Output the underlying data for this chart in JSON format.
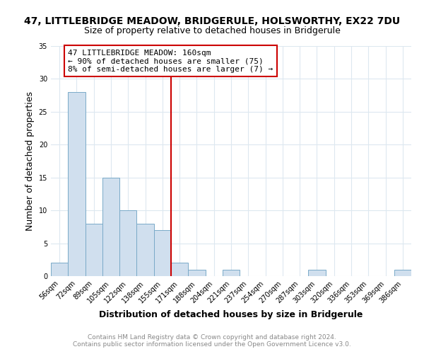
{
  "title": "47, LITTLEBRIDGE MEADOW, BRIDGERULE, HOLSWORTHY, EX22 7DU",
  "subtitle": "Size of property relative to detached houses in Bridgerule",
  "xlabel": "Distribution of detached houses by size in Bridgerule",
  "ylabel": "Number of detached properties",
  "bin_labels": [
    "56sqm",
    "72sqm",
    "89sqm",
    "105sqm",
    "122sqm",
    "138sqm",
    "155sqm",
    "171sqm",
    "188sqm",
    "204sqm",
    "221sqm",
    "237sqm",
    "254sqm",
    "270sqm",
    "287sqm",
    "303sqm",
    "320sqm",
    "336sqm",
    "353sqm",
    "369sqm",
    "386sqm"
  ],
  "bar_heights": [
    2,
    28,
    8,
    15,
    10,
    8,
    7,
    2,
    1,
    0,
    1,
    0,
    0,
    0,
    0,
    1,
    0,
    0,
    0,
    0,
    1
  ],
  "bar_color": "#d0dfee",
  "bar_edge_color": "#7aaac8",
  "highlight_line_color": "#cc0000",
  "ylim": [
    0,
    35
  ],
  "yticks": [
    0,
    5,
    10,
    15,
    20,
    25,
    30,
    35
  ],
  "annotation_box_text": "47 LITTLEBRIDGE MEADOW: 160sqm\n← 90% of detached houses are smaller (75)\n8% of semi-detached houses are larger (7) →",
  "annotation_box_color": "#cc0000",
  "footer_line1": "Contains HM Land Registry data © Crown copyright and database right 2024.",
  "footer_line2": "Contains public sector information licensed under the Open Government Licence v3.0.",
  "background_color": "#ffffff",
  "grid_color": "#dde8f0",
  "title_fontsize": 10,
  "subtitle_fontsize": 9,
  "axis_label_fontsize": 9,
  "tick_fontsize": 7,
  "footer_fontsize": 6.5,
  "annotation_fontsize": 8
}
